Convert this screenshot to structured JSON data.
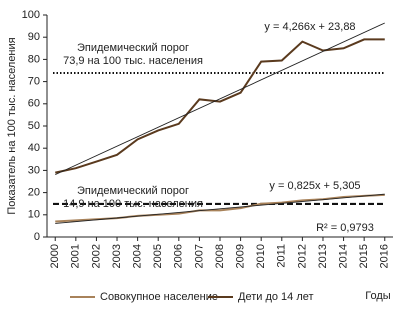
{
  "chart_data": {
    "type": "line",
    "y_label": "Показатель на 100 тыс. населения",
    "x_label": "Годы",
    "x": [
      2000,
      2001,
      2002,
      2003,
      2004,
      2005,
      2006,
      2007,
      2008,
      2009,
      2010,
      2011,
      2012,
      2013,
      2014,
      2015,
      2016
    ],
    "xlim": [
      1999.6,
      2016.4
    ],
    "xticks": [
      2000,
      2001,
      2002,
      2003,
      2004,
      2005,
      2006,
      2007,
      2008,
      2009,
      2010,
      2011,
      2012,
      2013,
      2014,
      2015,
      2016
    ],
    "ylim": [
      0,
      100
    ],
    "yticks": [
      0,
      10,
      20,
      30,
      40,
      50,
      60,
      70,
      80,
      90,
      100
    ],
    "series": [
      {
        "name": "Совокупное население",
        "color": "#a8825a",
        "values": [
          7,
          7.5,
          8,
          8.5,
          9.5,
          10,
          10.5,
          12,
          12,
          13,
          15,
          15.5,
          16.5,
          17,
          18,
          18.5,
          19
        ]
      },
      {
        "name": "Дети до 14 лет",
        "color": "#5a3a1e",
        "values": [
          29,
          31,
          34,
          37,
          44,
          48,
          51,
          62,
          61,
          65,
          79,
          79.5,
          88,
          84,
          85,
          89,
          89
        ]
      }
    ],
    "trend_lines": [
      {
        "x": [
          2000,
          2016
        ],
        "values": [
          28.1,
          96.4
        ],
        "color": "#222"
      },
      {
        "x": [
          2000,
          2016
        ],
        "values": [
          6.1,
          19.3
        ],
        "color": "#222"
      }
    ],
    "thresholds": [
      {
        "value": 73.9,
        "style": "dotted",
        "color": "#111"
      },
      {
        "value": 14.9,
        "style": "dashed",
        "color": "#111"
      }
    ],
    "annotations": [
      {
        "lines": [
          "Эпидемический порог",
          "73,9 на 100 тыс. населения"
        ]
      },
      {
        "lines": [
          "Эпидемический порог",
          "14,9 на 100 тыс. населения"
        ]
      },
      {
        "lines": [
          "y = 4,266x + 23,88"
        ]
      },
      {
        "lines": [
          "y = 0,825x + 5,305"
        ]
      },
      {
        "lines": [
          "R² = 0,9793"
        ]
      }
    ]
  }
}
